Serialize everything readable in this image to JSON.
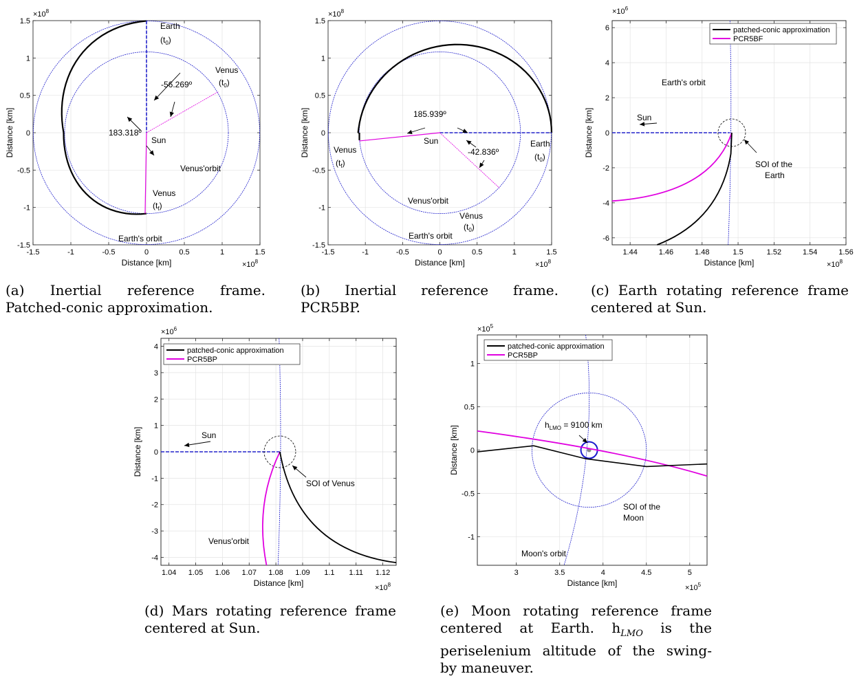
{
  "figure": {
    "common": {
      "ylabel": "Distance [km]",
      "xlabel": "Distance [km]"
    },
    "captions": {
      "a": [
        "(a)   Inertial   reference   frame.",
        "Patched-conic approximation."
      ],
      "b": [
        "(b)   Inertial   reference   frame.",
        "PCR5BP."
      ],
      "c": [
        "(c) Earth rotating reference frame",
        "centered at Sun."
      ],
      "d": [
        "(d) Mars rotating reference frame",
        "centered at Sun."
      ],
      "e": [
        "(e)  Moon rotating reference frame",
        "centered  at  Earth.    h",
        "LMO",
        " is the",
        "periselenium altitude of the swing-",
        "by maneuver."
      ]
    }
  },
  "chart_data": [
    {
      "id": "a",
      "type": "line",
      "title": "",
      "xlabel": "Distance [km]",
      "ylabel": "Distance [km]",
      "xlim": [
        -1.5,
        1.5
      ],
      "ylim": [
        -1.5,
        1.5
      ],
      "xticks": [
        "-1.5",
        "-1",
        "-0.5",
        "0",
        "0.5",
        "1",
        "1.5"
      ],
      "yticks": [
        "-1.5",
        "-1",
        "-0.5",
        "0",
        "0.5",
        "1",
        "1.5"
      ],
      "scale": "×10",
      "exponent": "8",
      "earth_orbit_radius": 1.496,
      "venus_orbit_radius": 1.082,
      "annotations": {
        "earth": "Earth",
        "earth_t0": "(t",
        "t0_sub": "0",
        "t_close": ")",
        "venus_t0": "Venus",
        "angle1": "-56.269º",
        "angle2": "183.318º",
        "sun": "Sun",
        "venus_orbit": "Venus'orbit",
        "venus_tf": "Venus",
        "tf_sub": "f",
        "earth_orbit": "Earth's orbit"
      }
    },
    {
      "id": "b",
      "type": "line",
      "title": "",
      "xlabel": "Distance [km]",
      "ylabel": "Distance [km]",
      "xlim": [
        -1.5,
        1.5
      ],
      "ylim": [
        -1.5,
        1.5
      ],
      "xticks": [
        "-1.5",
        "-1",
        "-0.5",
        "0",
        "0.5",
        "1",
        "1.5"
      ],
      "yticks": [
        "-1.5",
        "-1",
        "-0.5",
        "0",
        "0.5",
        "1",
        "1.5"
      ],
      "scale": "×10",
      "exponent": "8",
      "annotations": {
        "angle1": "185.939º",
        "sun": "Sun",
        "angle2": "-42.836º",
        "venus_tf": "Venus",
        "earth_t0": "Earth",
        "venus_orbit": "Venus'orbit",
        "venus_t0": "Vênus",
        "earth_orbit": "Earth's orbit",
        "t_open": "(t",
        "sub_f": "f",
        "sub_0": "0",
        "t_close": ")"
      }
    },
    {
      "id": "c",
      "type": "line",
      "title": "",
      "xlabel": "Distance [km]",
      "ylabel": "Distance [km]",
      "xlim": [
        1.43,
        1.56
      ],
      "ylim": [
        -6.4,
        6.4
      ],
      "xticks": [
        "1.44",
        "1.46",
        "1.48",
        "1.5",
        "1.52",
        "1.54",
        "1.56"
      ],
      "yticks": [
        "-6",
        "-4",
        "-2",
        "0",
        "2",
        "4",
        "6"
      ],
      "xscale": "×10",
      "xexp": "8",
      "yscale": "×10",
      "yexp": "6",
      "legend": [
        "patched-conic approximation",
        "PCR5BF"
      ],
      "annotations": {
        "earth_orbit": "Earth's orbit",
        "sun": "Sun",
        "soi1": "SOI of the",
        "soi2": "Earth"
      }
    },
    {
      "id": "d",
      "type": "line",
      "title": "",
      "xlabel": "Distance [km]",
      "ylabel": "Distance [km]",
      "xlim": [
        1.037,
        1.125
      ],
      "ylim": [
        -4.3,
        4.3
      ],
      "xticks": [
        "1.04",
        "1.05",
        "1.06",
        "1.07",
        "1.08",
        "1.09",
        "1.1",
        "1.11",
        "1.12"
      ],
      "yticks": [
        "-4",
        "-3",
        "-2",
        "-1",
        "0",
        "1",
        "2",
        "3",
        "4"
      ],
      "xscale": "×10",
      "xexp": "8",
      "yscale": "×10",
      "yexp": "6",
      "legend": [
        "patched-conic approximation",
        "PCR5BP"
      ],
      "annotations": {
        "sun": "Sun",
        "soi": "SOI of Venus",
        "venus_orbit": "Venus'orbit"
      }
    },
    {
      "id": "e",
      "type": "line",
      "title": "",
      "xlabel": "Distance [km]",
      "ylabel": "Distance [km]",
      "xlim": [
        2.55,
        5.2
      ],
      "ylim": [
        -1.33,
        1.33
      ],
      "xticks": [
        "3",
        "3.5",
        "4",
        "4.5",
        "5"
      ],
      "yticks": [
        "-1",
        "-0.5",
        "0",
        "0.5",
        "1"
      ],
      "xscale": "×10",
      "xexp": "5",
      "yscale": "×10",
      "yexp": "5",
      "legend": [
        "patched-conic approximation",
        "PCR5BP"
      ],
      "annotations": {
        "h": "h",
        "h_sub": "LMO",
        "h_val": " = 9100 km",
        "soi1": "SOI of the",
        "soi2": "Moon",
        "moon_orbit": "Moon's orbit"
      }
    }
  ]
}
